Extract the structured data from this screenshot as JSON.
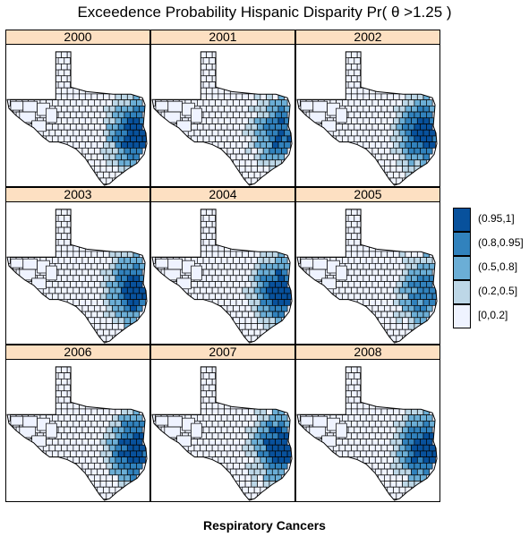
{
  "title": "Exceedence Probability Hispanic Disparity Pr( θ >1.25 )",
  "footer": "Respiratory Cancers",
  "panels": [
    {
      "label": "2000",
      "east_intensity": 1.0,
      "spread": 0.55
    },
    {
      "label": "2001",
      "east_intensity": 0.85,
      "spread": 0.7
    },
    {
      "label": "2002",
      "east_intensity": 1.0,
      "spread": 0.45
    },
    {
      "label": "2003",
      "east_intensity": 1.0,
      "spread": 0.6
    },
    {
      "label": "2004",
      "east_intensity": 0.95,
      "spread": 0.55
    },
    {
      "label": "2005",
      "east_intensity": 0.8,
      "spread": 0.6
    },
    {
      "label": "2006",
      "east_intensity": 1.0,
      "spread": 0.65
    },
    {
      "label": "2007",
      "east_intensity": 1.0,
      "spread": 0.6
    },
    {
      "label": "2008",
      "east_intensity": 1.0,
      "spread": 0.5
    }
  ],
  "legend": [
    {
      "label": "(0.95,1]",
      "color": "#08519c"
    },
    {
      "label": "(0.8,0.95]",
      "color": "#3182bd"
    },
    {
      "label": "(0.5,0.8]",
      "color": "#6baed6"
    },
    {
      "label": "(0.2,0.5]",
      "color": "#bdd7e7"
    },
    {
      "label": "[0,0.2]",
      "color": "#eff3ff"
    }
  ]
}
